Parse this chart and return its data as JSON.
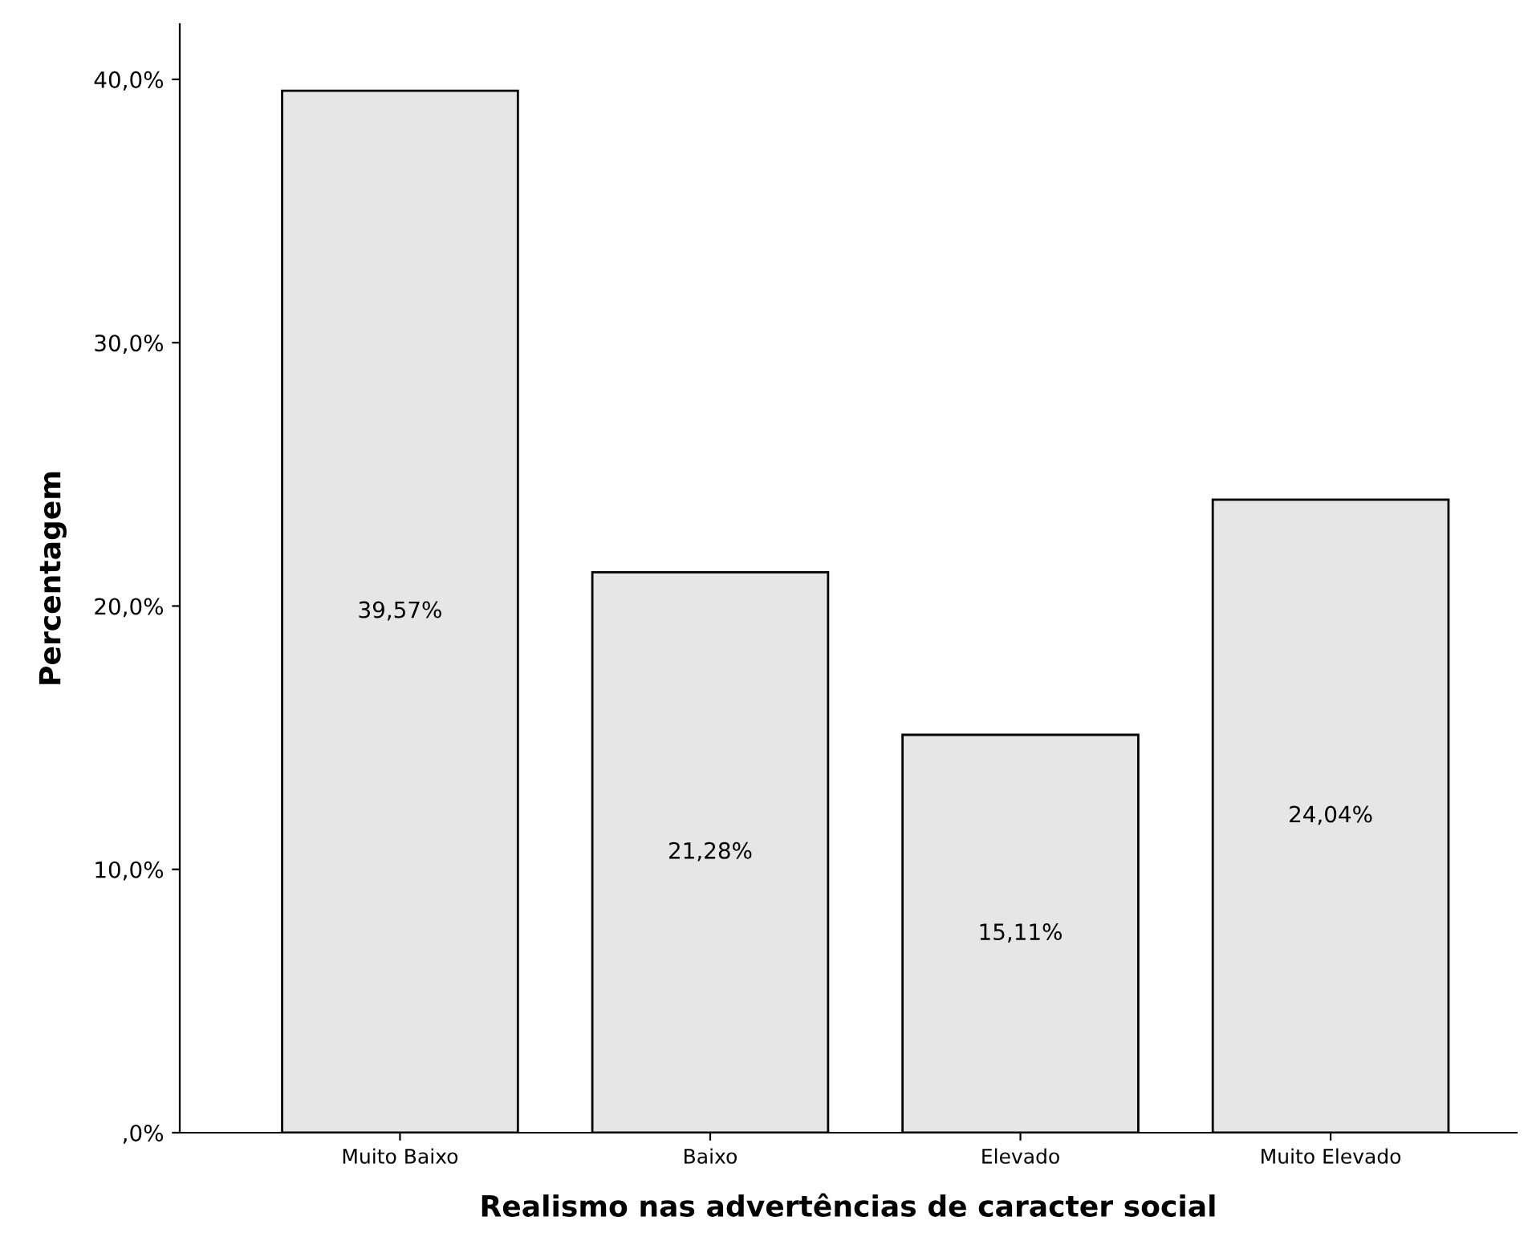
{
  "chart_data": {
    "type": "bar",
    "xlabel": "Realismo nas advertências de caracter social",
    "ylabel": "Percentagem",
    "categories": [
      "Muito Baixo",
      "Baixo",
      "Elevado",
      "Muito Elevado"
    ],
    "values": [
      39.57,
      21.28,
      15.11,
      24.04
    ],
    "value_labels": [
      "39,57%",
      "21,28%",
      "15,11%",
      "24,04%"
    ],
    "color": "#e6e6e6",
    "grid": false,
    "legend": false,
    "ylim": [
      0,
      42.1
    ],
    "yticks": [
      {
        "value": 0,
        "label": ",0%"
      },
      {
        "value": 10,
        "label": "10,0%"
      },
      {
        "value": 20,
        "label": "20,0%"
      },
      {
        "value": 30,
        "label": "30,0%"
      },
      {
        "value": 40,
        "label": "40,0%"
      }
    ]
  }
}
